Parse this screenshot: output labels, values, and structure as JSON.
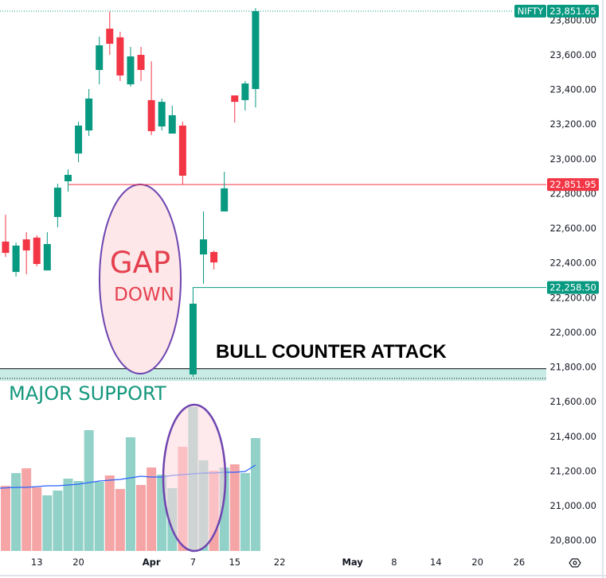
{
  "chart_data": {
    "type": "candlestick",
    "symbol": "NIFTY",
    "last_price_label": "23,851.65",
    "colors": {
      "up": "#089981",
      "down": "#f23645",
      "volume_up": "#92d1c8",
      "volume_down": "#f5a5a6",
      "volume_ma": "#2962ff",
      "ellipse_stroke": "#6e45b0",
      "ellipse_fill": "#fde7e9",
      "support_fill": "#c8ebe5",
      "gap_text": "#e5404e",
      "support_text": "#15977d"
    },
    "y_axis": {
      "range": [
        20700,
        23900
      ],
      "ticks": [
        "23,800.00",
        "23,600.00",
        "23,400.00",
        "23,200.00",
        "23,000.00",
        "22,800.00",
        "22,600.00",
        "22,400.00",
        "22,200.00",
        "22,000.00",
        "21,800.00",
        "21,600.00",
        "21,400.00",
        "21,200.00",
        "21,000.00",
        "20,800.00"
      ],
      "tick_values": [
        23800,
        23600,
        23400,
        23200,
        23000,
        22800,
        22600,
        22400,
        22200,
        22000,
        21800,
        21600,
        21400,
        21200,
        21000,
        20800
      ]
    },
    "x_axis": {
      "ticks": [
        {
          "label": "13",
          "bold": false,
          "bar": 3
        },
        {
          "label": "20",
          "bold": false,
          "bar": 7
        },
        {
          "label": "Apr",
          "bold": true,
          "bar": 14
        },
        {
          "label": "7",
          "bold": false,
          "bar": 18
        },
        {
          "label": "15",
          "bold": false,
          "bar": 22
        },
        {
          "label": "22",
          "bold": false,
          "bar": 26
        },
        {
          "label": "May",
          "bold": true,
          "bar": 33
        },
        {
          "label": "8",
          "bold": false,
          "bar": 37
        },
        {
          "label": "14",
          "bold": false,
          "bar": 41
        },
        {
          "label": "20",
          "bold": false,
          "bar": 45
        },
        {
          "label": "26",
          "bold": false,
          "bar": 49
        }
      ]
    },
    "candles": [
      {
        "o": 22523,
        "h": 22678,
        "l": 22435,
        "c": 22458
      },
      {
        "o": 22348,
        "h": 22518,
        "l": 22321,
        "c": 22500
      },
      {
        "o": 22536,
        "h": 22578,
        "l": 22335,
        "c": 22472
      },
      {
        "o": 22546,
        "h": 22559,
        "l": 22380,
        "c": 22394
      },
      {
        "o": 22357,
        "h": 22578,
        "l": 22357,
        "c": 22509
      },
      {
        "o": 22665,
        "h": 22857,
        "l": 22605,
        "c": 22834
      },
      {
        "o": 22871,
        "h": 22940,
        "l": 22811,
        "c": 22908
      },
      {
        "o": 23031,
        "h": 23215,
        "l": 22981,
        "c": 23192
      },
      {
        "o": 23164,
        "h": 23403,
        "l": 23132,
        "c": 23348
      },
      {
        "o": 23513,
        "h": 23705,
        "l": 23430,
        "c": 23655
      },
      {
        "o": 23751,
        "h": 23850,
        "l": 23600,
        "c": 23664
      },
      {
        "o": 23701,
        "h": 23733,
        "l": 23449,
        "c": 23481
      },
      {
        "o": 23430,
        "h": 23646,
        "l": 23417,
        "c": 23591
      },
      {
        "o": 23600,
        "h": 23646,
        "l": 23449,
        "c": 23513
      },
      {
        "o": 23339,
        "h": 23563,
        "l": 23137,
        "c": 23160
      },
      {
        "o": 23187,
        "h": 23348,
        "l": 23164,
        "c": 23329
      },
      {
        "o": 23146,
        "h": 23307,
        "l": 23146,
        "c": 23252
      },
      {
        "o": 23192,
        "h": 23215,
        "l": 22852,
        "c": 22903
      },
      {
        "o": 21757,
        "h": 22165,
        "l": 21743,
        "c": 22165
      },
      {
        "o": 22449,
        "h": 22697,
        "l": 22280,
        "c": 22536
      },
      {
        "o": 22463,
        "h": 22472,
        "l": 22362,
        "c": 22403
      },
      {
        "o": 22697,
        "h": 22926,
        "l": 22697,
        "c": 22830
      },
      {
        "o": 23366,
        "h": 23366,
        "l": 23210,
        "c": 23329
      },
      {
        "o": 23339,
        "h": 23449,
        "l": 23279,
        "c": 23435
      },
      {
        "o": 23403,
        "h": 23870,
        "l": 23297,
        "c": 23852
      }
    ],
    "volume_relative": [
      82,
      98,
      104,
      80,
      70,
      76,
      91,
      88,
      152,
      87,
      95,
      78,
      143,
      83,
      105,
      96,
      79,
      131,
      181,
      114,
      101,
      105,
      109,
      98,
      142
    ],
    "volume_ma_relative": [
      79,
      80,
      80,
      81,
      82,
      82,
      83,
      84,
      86,
      88,
      89,
      90,
      92,
      94,
      93,
      93,
      95,
      96,
      97,
      98,
      98,
      99,
      99,
      100,
      108
    ],
    "horizontal_lines": [
      {
        "price": 22851.95,
        "label": "22,851.95",
        "color": "#f23645",
        "from_bar": 6
      },
      {
        "price": 22258.5,
        "label": "22,258.50",
        "color": "#089981",
        "from_bar": 18
      }
    ],
    "support_zone": [
      21720,
      21790
    ],
    "annotations": {
      "gap_line1": "GAP",
      "gap_line2": "DOWN",
      "bull": "BULL COUNTER ATTACK",
      "support": "MAJOR SUPPORT"
    },
    "grid": false
  }
}
